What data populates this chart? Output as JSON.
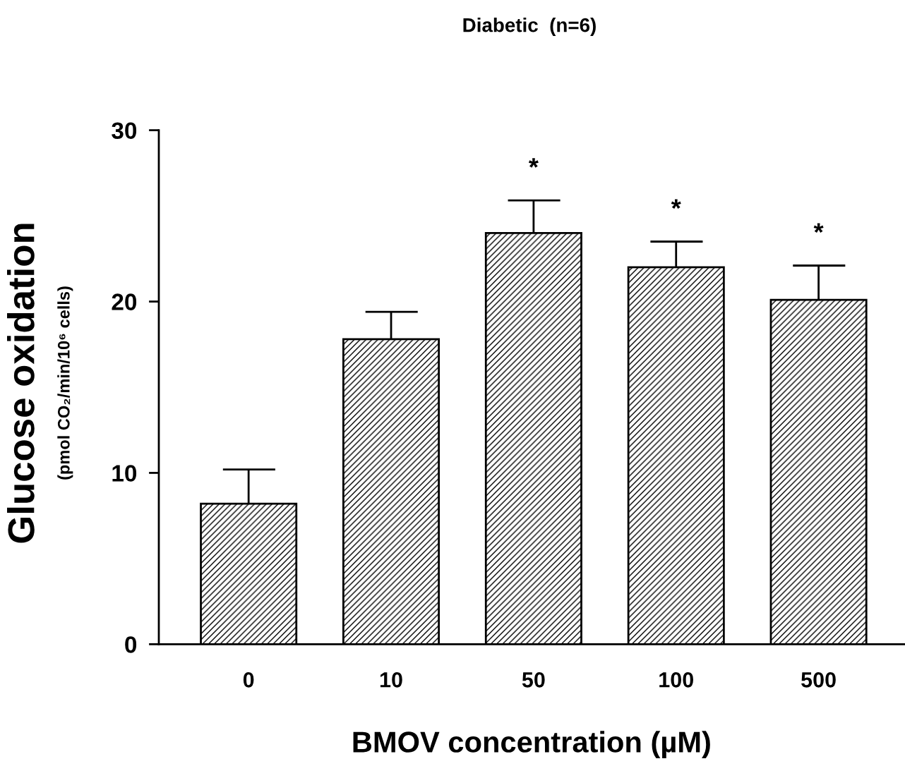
{
  "chart_data": {
    "type": "bar",
    "title": "Diabetic  (n=6)",
    "xlabel": "BMOV concentration (µM)",
    "ylabel": "Glucose oxidation\n(pmol CO₂/min/10⁶ cells)",
    "categories": [
      "0",
      "10",
      "50",
      "100",
      "500"
    ],
    "values": [
      8.2,
      17.8,
      24.0,
      22.0,
      20.1
    ],
    "errors": [
      [
        8.2,
        10.2
      ],
      [
        17.8,
        19.4
      ],
      [
        24.0,
        25.9
      ],
      [
        22.0,
        23.5
      ],
      [
        20.1,
        22.1
      ]
    ],
    "color": "#000000",
    "ylim": [
      0,
      30
    ],
    "yticks": [
      0,
      10,
      20,
      30
    ],
    "grid": false,
    "annotations": [
      "*",
      "*",
      "*"
    ]
  }
}
